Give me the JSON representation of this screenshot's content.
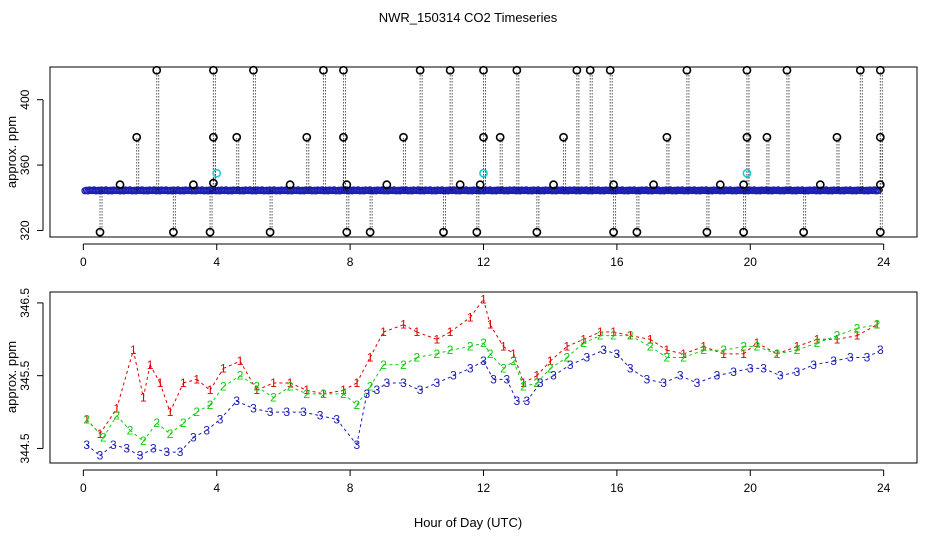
{
  "title": "NWR_150314  CO2 Timeseries",
  "xlabel": "Hour of Day (UTC)",
  "colors": {
    "black": "#000000",
    "blue": "#1e1eb4",
    "red": "#dd0000",
    "green": "#11cc11",
    "cyan": "#22cccc"
  },
  "chart_data": [
    {
      "type": "scatter",
      "panel": "top",
      "ylabel": "approx. ppm",
      "xlim": [
        -1,
        25
      ],
      "ylim": [
        316,
        420
      ],
      "xticks": [
        0,
        4,
        8,
        12,
        16,
        20,
        24
      ],
      "yticks": [
        320,
        360,
        400
      ],
      "baseline": 344.5,
      "series": [
        {
          "name": "blue-points",
          "color": "blue",
          "x_range": [
            0.05,
            23.9
          ],
          "y_pattern": [
            344.3,
            344.6,
            344.2,
            344.7,
            344.5,
            344.4,
            344.8,
            344.3
          ]
        },
        {
          "name": "black-spikes-high",
          "color": "black",
          "x": [
            1.6,
            2.2,
            3.9,
            4.6,
            5.1,
            6.7,
            7.2,
            7.8,
            9.6,
            10.1,
            11.0,
            12.0,
            12.5,
            13.0,
            14.4,
            14.8,
            15.2,
            15.8,
            17.5,
            18.1,
            19.9,
            20.5,
            21.1,
            22.6,
            23.3,
            23.9,
            3.9,
            7.8,
            12.0,
            19.9,
            23.9
          ],
          "y": [
            377,
            418,
            418,
            377,
            418,
            377,
            418,
            418,
            377,
            418,
            418,
            418,
            377,
            418,
            377,
            418,
            418,
            418,
            377,
            418,
            418,
            377,
            418,
            377,
            418,
            418,
            377,
            377,
            377,
            377,
            377
          ]
        },
        {
          "name": "black-spikes-low",
          "color": "black",
          "x": [
            0.5,
            2.7,
            3.8,
            5.6,
            7.9,
            8.6,
            10.8,
            11.8,
            13.6,
            15.9,
            16.6,
            18.7,
            19.8,
            21.6,
            23.9
          ],
          "y": [
            319,
            319,
            319,
            319,
            319,
            319,
            319,
            319,
            319,
            319,
            319,
            319,
            319,
            319,
            319
          ]
        },
        {
          "name": "black-near-baseline",
          "color": "black",
          "x": [
            1.1,
            3.3,
            3.9,
            6.2,
            7.9,
            9.1,
            11.3,
            11.9,
            14.1,
            15.9,
            17.1,
            19.1,
            19.8,
            22.1,
            23.9
          ],
          "y": [
            348,
            348,
            349,
            348,
            348,
            348,
            348,
            348,
            348,
            348,
            348,
            348,
            348,
            348,
            348
          ]
        },
        {
          "name": "cyan-points",
          "color": "cyan",
          "x": [
            4.0,
            12.0,
            19.9
          ],
          "y": [
            355,
            355,
            355
          ]
        }
      ]
    },
    {
      "type": "line",
      "panel": "bottom",
      "ylabel": "approx. ppm",
      "xlim": [
        -1,
        25
      ],
      "ylim": [
        344.3,
        346.65
      ],
      "xticks": [
        0,
        4,
        8,
        12,
        16,
        20,
        24
      ],
      "yticks": [
        344.5,
        345.5,
        346.5
      ],
      "ytick_labels": [
        "344.5",
        "345.5",
        "346.5"
      ],
      "series": [
        {
          "name": "1",
          "marker": "1",
          "color": "red",
          "x": [
            0.1,
            0.5,
            1.0,
            1.5,
            1.8,
            2.0,
            2.3,
            2.6,
            3.0,
            3.4,
            3.8,
            4.2,
            4.7,
            5.2,
            5.7,
            6.2,
            6.7,
            7.2,
            7.8,
            8.2,
            8.6,
            9.0,
            9.6,
            10.0,
            10.6,
            11.0,
            11.6,
            12.0,
            12.2,
            12.6,
            12.9,
            13.2,
            13.6,
            14.0,
            14.5,
            15.0,
            15.5,
            15.9,
            16.4,
            17.0,
            17.5,
            18.0,
            18.6,
            19.2,
            19.8,
            20.2,
            20.8,
            21.4,
            22.0,
            22.6,
            23.2,
            23.8
          ],
          "y": [
            344.9,
            344.7,
            345.05,
            345.85,
            345.2,
            345.65,
            345.4,
            345.0,
            345.4,
            345.45,
            345.3,
            345.6,
            345.7,
            345.3,
            345.4,
            345.4,
            345.3,
            345.25,
            345.3,
            345.4,
            345.75,
            346.1,
            346.2,
            346.1,
            346.0,
            346.1,
            346.3,
            346.55,
            346.2,
            345.9,
            345.8,
            345.4,
            345.5,
            345.7,
            345.9,
            346.0,
            346.1,
            346.1,
            346.05,
            346.0,
            345.85,
            345.8,
            345.9,
            345.8,
            345.8,
            345.95,
            345.8,
            345.9,
            346.0,
            346.0,
            346.05,
            346.2
          ]
        },
        {
          "name": "2",
          "marker": "2",
          "color": "green",
          "x": [
            0.1,
            0.6,
            1.0,
            1.4,
            1.8,
            2.2,
            2.6,
            3.0,
            3.4,
            3.8,
            4.2,
            4.7,
            5.2,
            5.7,
            6.2,
            6.7,
            7.2,
            7.8,
            8.2,
            8.6,
            9.0,
            9.6,
            10.0,
            10.6,
            11.0,
            11.6,
            12.0,
            12.2,
            12.6,
            12.9,
            13.2,
            13.6,
            14.0,
            14.5,
            15.0,
            15.5,
            15.9,
            16.4,
            17.0,
            17.5,
            18.0,
            18.6,
            19.2,
            19.8,
            20.2,
            20.8,
            21.4,
            22.0,
            22.6,
            23.2,
            23.8
          ],
          "y": [
            344.9,
            344.65,
            344.95,
            344.75,
            344.6,
            344.85,
            344.7,
            344.85,
            345.0,
            345.1,
            345.35,
            345.5,
            345.35,
            345.2,
            345.35,
            345.25,
            345.25,
            345.25,
            345.1,
            345.35,
            345.65,
            345.65,
            345.75,
            345.8,
            345.85,
            345.9,
            345.95,
            345.8,
            345.6,
            345.7,
            345.35,
            345.4,
            345.6,
            345.75,
            345.95,
            346.05,
            346.05,
            346.05,
            345.9,
            345.75,
            345.75,
            345.85,
            345.85,
            345.9,
            345.9,
            345.8,
            345.85,
            345.95,
            346.05,
            346.15,
            346.2
          ]
        },
        {
          "name": "3",
          "marker": "3",
          "color": "blue",
          "x": [
            0.1,
            0.5,
            0.9,
            1.3,
            1.7,
            2.1,
            2.5,
            2.9,
            3.3,
            3.7,
            4.1,
            4.6,
            5.1,
            5.6,
            6.1,
            6.6,
            7.1,
            7.6,
            8.2,
            8.5,
            8.8,
            9.1,
            9.6,
            10.1,
            10.6,
            11.1,
            11.6,
            12.0,
            12.3,
            12.7,
            13.0,
            13.3,
            13.7,
            14.1,
            14.6,
            15.1,
            15.6,
            16.0,
            16.4,
            16.9,
            17.4,
            17.9,
            18.4,
            19.0,
            19.5,
            20.0,
            20.4,
            20.9,
            21.4,
            21.9,
            22.5,
            23.0,
            23.5,
            23.9
          ],
          "y": [
            344.55,
            344.4,
            344.55,
            344.5,
            344.4,
            344.5,
            344.45,
            344.45,
            344.65,
            344.75,
            344.9,
            345.15,
            345.05,
            345.0,
            345.0,
            345.0,
            344.95,
            344.9,
            344.55,
            345.25,
            345.3,
            345.4,
            345.4,
            345.3,
            345.4,
            345.5,
            345.6,
            345.7,
            345.45,
            345.45,
            345.15,
            345.15,
            345.4,
            345.5,
            345.65,
            345.75,
            345.85,
            345.8,
            345.6,
            345.45,
            345.4,
            345.5,
            345.4,
            345.5,
            345.55,
            345.6,
            345.6,
            345.5,
            345.55,
            345.65,
            345.7,
            345.75,
            345.75,
            345.85
          ]
        }
      ]
    }
  ]
}
